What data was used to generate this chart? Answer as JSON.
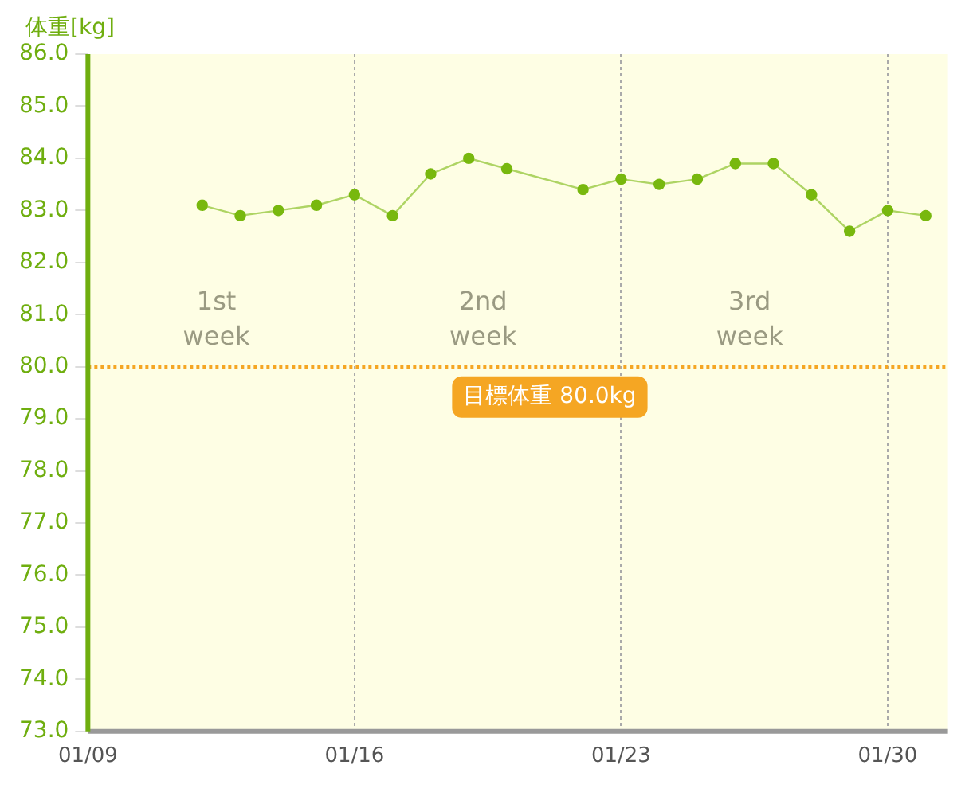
{
  "chart_data": {
    "type": "line",
    "ylabel": "体重[kg]",
    "x": [
      "--01-12",
      "--01-13",
      "--01-14",
      "--01-15",
      "--01-16",
      "--01-17",
      "--01-18",
      "--01-19",
      "--01-20",
      "--01-22",
      "--01-23",
      "--01-24",
      "--01-25",
      "--01-26",
      "--01-27",
      "--01-28",
      "--01-29",
      "--01-30",
      "--01-31"
    ],
    "series": [
      {
        "color": "#78b80e",
        "values": [
          83.1,
          82.9,
          83.0,
          83.1,
          83.3,
          82.9,
          83.7,
          84.0,
          83.8,
          83.4,
          83.6,
          83.5,
          83.6,
          83.9,
          83.9,
          83.3,
          82.6,
          83.0,
          82.9
        ]
      }
    ],
    "xlim": [
      "--01-09",
      "--01-31T14:00"
    ],
    "xticks": [
      {
        "value": "--01-09",
        "label": "01/09"
      },
      {
        "value": "--01-16",
        "label": "01/16"
      },
      {
        "value": "--01-23",
        "label": "01/23"
      },
      {
        "value": "--01-30",
        "label": "01/30"
      }
    ],
    "ylim": [
      73,
      86
    ],
    "yticks": [
      {
        "value": 73,
        "label": "73.0"
      },
      {
        "value": 74,
        "label": "74.0"
      },
      {
        "value": 75,
        "label": "75.0"
      },
      {
        "value": 76,
        "label": "76.0"
      },
      {
        "value": 77,
        "label": "77.0"
      },
      {
        "value": 78,
        "label": "78.0"
      },
      {
        "value": 79,
        "label": "79.0"
      },
      {
        "value": 80,
        "label": "80.0"
      },
      {
        "value": 81,
        "label": "81.0"
      },
      {
        "value": 82,
        "label": "82.0"
      },
      {
        "value": 83,
        "label": "83.0"
      },
      {
        "value": 84,
        "label": "84.0"
      },
      {
        "value": 85,
        "label": "85.0"
      },
      {
        "value": 86,
        "label": "86.0"
      }
    ],
    "grid": "x",
    "marker": "circle",
    "line_style": "solid",
    "legend": false,
    "ref_lines": [
      {
        "axis": "y",
        "value": 80,
        "label": "目標体重 80.0kg",
        "color": "#f5a623",
        "line_style": "dotted"
      }
    ],
    "annotations": [
      "1st week",
      "2nd week",
      "3rd week"
    ]
  }
}
